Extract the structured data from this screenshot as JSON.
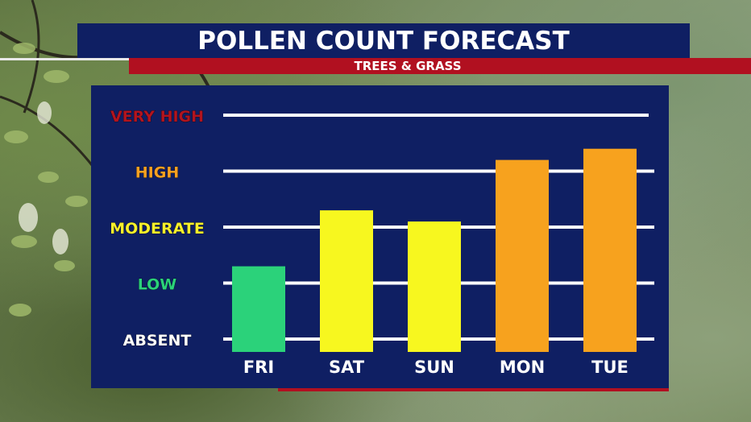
{
  "chart_data": {
    "type": "bar",
    "title": "POLLEN COUNT FORECAST",
    "subtitle": "TREES & GRASS",
    "categories": [
      "FRI",
      "SAT",
      "SUN",
      "MON",
      "TUE"
    ],
    "values": [
      1.3,
      2.3,
      2.1,
      3.2,
      3.4
    ],
    "y_levels": [
      {
        "label": "ABSENT",
        "value": 0,
        "color": "#ffffff"
      },
      {
        "label": "LOW",
        "value": 1,
        "color": "#2bd27a"
      },
      {
        "label": "MODERATE",
        "value": 2,
        "color": "#f7f02a"
      },
      {
        "label": "HIGH",
        "value": 3,
        "color": "#f7a021"
      },
      {
        "label": "VERY HIGH",
        "value": 4,
        "color": "#b1141f"
      }
    ],
    "bar_colors": [
      "#2bd27a",
      "#f7f71f",
      "#f7f71f",
      "#f7a21e",
      "#f7a21e"
    ],
    "ylim": [
      0,
      4
    ],
    "grid": true
  }
}
